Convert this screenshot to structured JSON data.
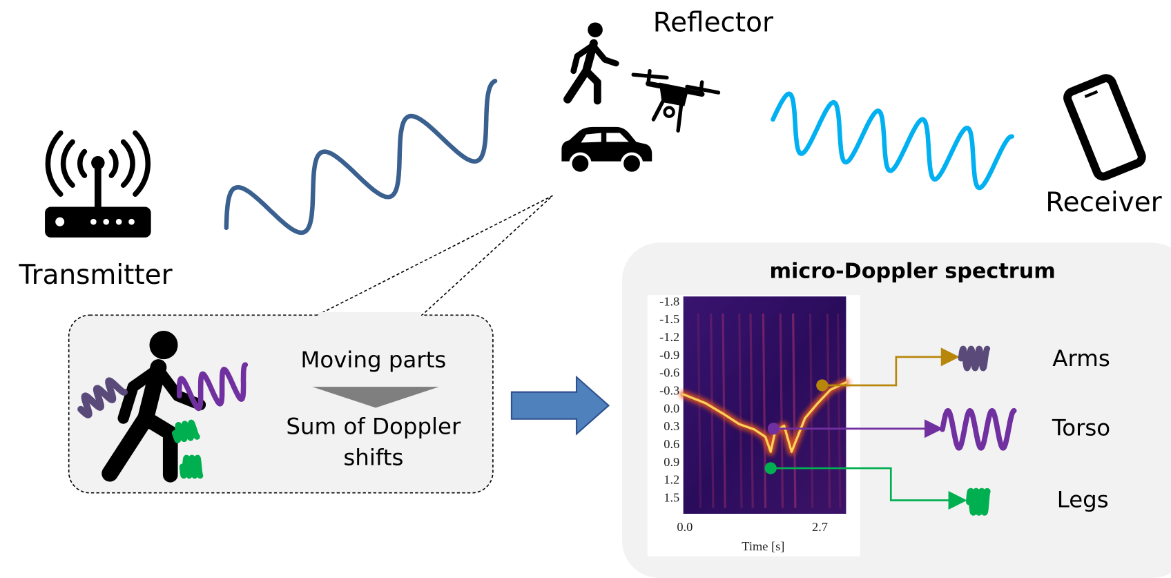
{
  "reflector": {
    "label": "Reflector"
  },
  "transmitter": {
    "label": "Transmitter"
  },
  "receiver": {
    "label": "Receiver"
  },
  "callout": {
    "top": "Moving parts",
    "bottom_lines": [
      "Sum of Doppler",
      "shifts"
    ]
  },
  "spectrum": {
    "title": "micro-Doppler spectrum",
    "yticks": [
      "-1.8",
      "-1.5",
      "-1.2",
      "-0.9",
      "-0.6",
      "-0.3",
      "0.0",
      "0.3",
      "0.6",
      "0.9",
      "1.2",
      "1.5"
    ],
    "xticks": [
      "0.0",
      "2.7"
    ],
    "xlabel": "Time [s]",
    "components": [
      {
        "label": "Arms"
      },
      {
        "label": "Torso"
      },
      {
        "label": "Legs"
      }
    ]
  }
}
